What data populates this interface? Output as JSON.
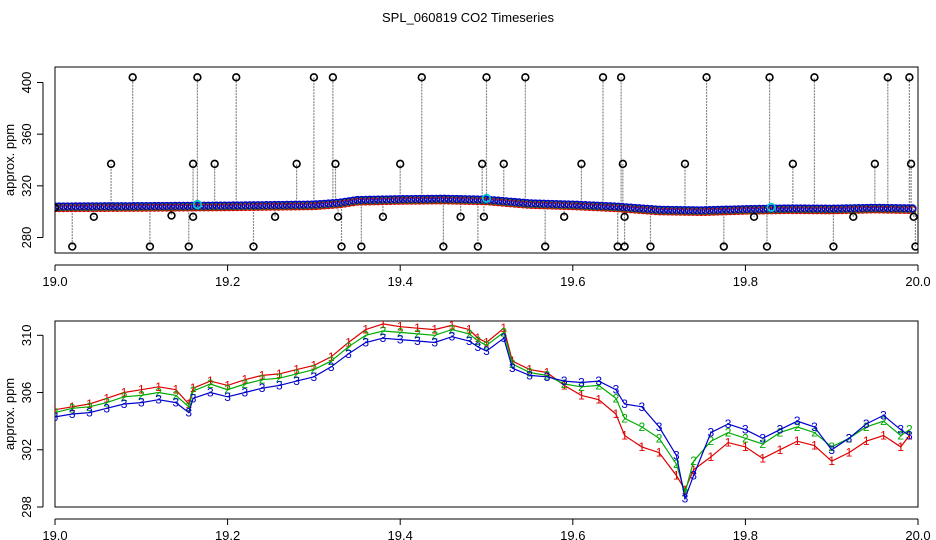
{
  "figure_title": "SPL_060819  CO2 Timeseries",
  "colors": {
    "series1": "#dd0000",
    "series2": "#00aa00",
    "series3": "#0000cc",
    "outlier": "#000000",
    "cyan": "#00cccc",
    "grey": "#888888"
  },
  "chart_data": [
    {
      "type": "scatter",
      "title": "",
      "xlabel": "",
      "ylabel": "approx. ppm",
      "xlim": [
        19.0,
        20.0
      ],
      "ylim": [
        268,
        412
      ],
      "xticks": [
        "19.0",
        "19.2",
        "19.4",
        "19.6",
        "19.8",
        "20.0"
      ],
      "yticks": [
        "280",
        "320",
        "360",
        "400"
      ],
      "grid": false,
      "baseline": [
        [
          19.0,
          303.5
        ],
        [
          19.1,
          303.8
        ],
        [
          19.2,
          304.2
        ],
        [
          19.3,
          305.0
        ],
        [
          19.33,
          306.5
        ],
        [
          19.35,
          308.5
        ],
        [
          19.4,
          309.2
        ],
        [
          19.45,
          309.5
        ],
        [
          19.5,
          308.8
        ],
        [
          19.55,
          306.0
        ],
        [
          19.6,
          305.0
        ],
        [
          19.65,
          303.5
        ],
        [
          19.7,
          301.0
        ],
        [
          19.75,
          300.5
        ],
        [
          19.8,
          301.5
        ],
        [
          19.85,
          302.0
        ],
        [
          19.9,
          301.8
        ],
        [
          19.95,
          302.5
        ],
        [
          20.0,
          302.0
        ]
      ],
      "outliers": [
        [
          19.0,
          303
        ],
        [
          19.02,
          273
        ],
        [
          19.045,
          296
        ],
        [
          19.065,
          337
        ],
        [
          19.09,
          404
        ],
        [
          19.11,
          273
        ],
        [
          19.135,
          297
        ],
        [
          19.155,
          273
        ],
        [
          19.16,
          296
        ],
        [
          19.16,
          337
        ],
        [
          19.165,
          404
        ],
        [
          19.185,
          337
        ],
        [
          19.21,
          404
        ],
        [
          19.23,
          273
        ],
        [
          19.255,
          296
        ],
        [
          19.28,
          337
        ],
        [
          19.3,
          404
        ],
        [
          19.322,
          404
        ],
        [
          19.325,
          337
        ],
        [
          19.328,
          296
        ],
        [
          19.332,
          273
        ],
        [
          19.355,
          273
        ],
        [
          19.38,
          296
        ],
        [
          19.4,
          337
        ],
        [
          19.425,
          404
        ],
        [
          19.45,
          273
        ],
        [
          19.47,
          296
        ],
        [
          19.49,
          273
        ],
        [
          19.495,
          337
        ],
        [
          19.497,
          296
        ],
        [
          19.5,
          404
        ],
        [
          19.52,
          337
        ],
        [
          19.545,
          404
        ],
        [
          19.568,
          273
        ],
        [
          19.59,
          296
        ],
        [
          19.61,
          337
        ],
        [
          19.635,
          404
        ],
        [
          19.652,
          273
        ],
        [
          19.656,
          404
        ],
        [
          19.658,
          337
        ],
        [
          19.66,
          296
        ],
        [
          19.66,
          273
        ],
        [
          19.69,
          273
        ],
        [
          19.73,
          337
        ],
        [
          19.755,
          404
        ],
        [
          19.775,
          273
        ],
        [
          19.81,
          296
        ],
        [
          19.825,
          273
        ],
        [
          19.828,
          404
        ],
        [
          19.855,
          337
        ],
        [
          19.88,
          404
        ],
        [
          19.902,
          273
        ],
        [
          19.925,
          296
        ],
        [
          19.95,
          337
        ],
        [
          19.965,
          404
        ],
        [
          19.99,
          404
        ],
        [
          19.992,
          337
        ],
        [
          19.995,
          296
        ],
        [
          19.997,
          273
        ]
      ]
    },
    {
      "type": "line",
      "title": "",
      "xlabel": "",
      "ylabel": "approx. ppm",
      "xlim": [
        19.0,
        20.0
      ],
      "ylim": [
        298,
        311
      ],
      "xticks": [
        "19.0",
        "19.2",
        "19.4",
        "19.6",
        "19.8",
        "20.0"
      ],
      "yticks": [
        "298",
        "302",
        "306",
        "310"
      ],
      "grid": false,
      "markers": [
        "1",
        "2",
        "3"
      ],
      "series": [
        {
          "marker": "1",
          "points": [
            [
              19.0,
              304.8
            ],
            [
              19.02,
              305.0
            ],
            [
              19.04,
              305.2
            ],
            [
              19.06,
              305.6
            ],
            [
              19.08,
              306.0
            ],
            [
              19.1,
              306.2
            ],
            [
              19.12,
              306.4
            ],
            [
              19.14,
              306.2
            ],
            [
              19.155,
              305.2
            ],
            [
              19.16,
              306.3
            ],
            [
              19.18,
              306.8
            ],
            [
              19.2,
              306.5
            ],
            [
              19.22,
              306.9
            ],
            [
              19.24,
              307.2
            ],
            [
              19.26,
              307.3
            ],
            [
              19.28,
              307.6
            ],
            [
              19.3,
              307.9
            ],
            [
              19.32,
              308.5
            ],
            [
              19.34,
              309.5
            ],
            [
              19.36,
              310.4
            ],
            [
              19.38,
              310.8
            ],
            [
              19.4,
              310.6
            ],
            [
              19.42,
              310.5
            ],
            [
              19.44,
              310.4
            ],
            [
              19.46,
              310.7
            ],
            [
              19.48,
              310.4
            ],
            [
              19.49,
              309.8
            ],
            [
              19.5,
              309.5
            ],
            [
              19.52,
              310.5
            ],
            [
              19.53,
              308.2
            ],
            [
              19.55,
              307.6
            ],
            [
              19.57,
              307.4
            ],
            [
              19.59,
              306.5
            ],
            [
              19.61,
              305.8
            ],
            [
              19.63,
              305.5
            ],
            [
              19.65,
              304.5
            ],
            [
              19.66,
              303.0
            ],
            [
              19.68,
              302.2
            ],
            [
              19.7,
              301.8
            ],
            [
              19.72,
              300.2
            ],
            [
              19.73,
              299.2
            ],
            [
              19.74,
              300.6
            ],
            [
              19.76,
              301.5
            ],
            [
              19.78,
              302.5
            ],
            [
              19.8,
              302.2
            ],
            [
              19.82,
              301.4
            ],
            [
              19.84,
              302.0
            ],
            [
              19.86,
              302.6
            ],
            [
              19.88,
              302.3
            ],
            [
              19.9,
              301.2
            ],
            [
              19.92,
              301.8
            ],
            [
              19.94,
              302.6
            ],
            [
              19.96,
              303.0
            ],
            [
              19.98,
              302.2
            ],
            [
              19.99,
              303.0
            ]
          ]
        },
        {
          "marker": "2",
          "points": [
            [
              19.0,
              304.6
            ],
            [
              19.02,
              304.9
            ],
            [
              19.04,
              305.0
            ],
            [
              19.06,
              305.3
            ],
            [
              19.08,
              305.7
            ],
            [
              19.1,
              305.8
            ],
            [
              19.12,
              306.0
            ],
            [
              19.14,
              305.8
            ],
            [
              19.155,
              305.0
            ],
            [
              19.16,
              306.1
            ],
            [
              19.18,
              306.6
            ],
            [
              19.2,
              306.2
            ],
            [
              19.22,
              306.6
            ],
            [
              19.24,
              306.9
            ],
            [
              19.26,
              307.0
            ],
            [
              19.28,
              307.3
            ],
            [
              19.3,
              307.6
            ],
            [
              19.32,
              308.2
            ],
            [
              19.34,
              309.2
            ],
            [
              19.36,
              310.0
            ],
            [
              19.38,
              310.3
            ],
            [
              19.4,
              310.2
            ],
            [
              19.42,
              310.1
            ],
            [
              19.44,
              310.0
            ],
            [
              19.46,
              310.4
            ],
            [
              19.48,
              310.1
            ],
            [
              19.49,
              309.6
            ],
            [
              19.5,
              309.3
            ],
            [
              19.52,
              310.2
            ],
            [
              19.53,
              308.0
            ],
            [
              19.55,
              307.4
            ],
            [
              19.57,
              307.2
            ],
            [
              19.59,
              306.6
            ],
            [
              19.61,
              306.4
            ],
            [
              19.63,
              306.5
            ],
            [
              19.65,
              305.6
            ],
            [
              19.66,
              304.2
            ],
            [
              19.68,
              303.6
            ],
            [
              19.7,
              302.8
            ],
            [
              19.72,
              301.0
            ],
            [
              19.73,
              299.0
            ],
            [
              19.74,
              301.2
            ],
            [
              19.76,
              302.6
            ],
            [
              19.78,
              303.2
            ],
            [
              19.8,
              302.8
            ],
            [
              19.82,
              302.4
            ],
            [
              19.84,
              303.2
            ],
            [
              19.86,
              303.6
            ],
            [
              19.88,
              303.2
            ],
            [
              19.9,
              302.2
            ],
            [
              19.92,
              302.8
            ],
            [
              19.94,
              303.6
            ],
            [
              19.96,
              304.0
            ],
            [
              19.98,
              303.0
            ],
            [
              19.99,
              303.4
            ]
          ]
        },
        {
          "marker": "3",
          "points": [
            [
              19.0,
              304.3
            ],
            [
              19.02,
              304.5
            ],
            [
              19.04,
              304.6
            ],
            [
              19.06,
              304.9
            ],
            [
              19.08,
              305.2
            ],
            [
              19.1,
              305.3
            ],
            [
              19.12,
              305.5
            ],
            [
              19.14,
              305.3
            ],
            [
              19.155,
              304.6
            ],
            [
              19.16,
              305.6
            ],
            [
              19.18,
              306.0
            ],
            [
              19.2,
              305.7
            ],
            [
              19.22,
              306.0
            ],
            [
              19.24,
              306.3
            ],
            [
              19.26,
              306.5
            ],
            [
              19.28,
              306.8
            ],
            [
              19.3,
              307.1
            ],
            [
              19.32,
              307.8
            ],
            [
              19.34,
              308.7
            ],
            [
              19.36,
              309.5
            ],
            [
              19.38,
              309.8
            ],
            [
              19.4,
              309.7
            ],
            [
              19.42,
              309.6
            ],
            [
              19.44,
              309.5
            ],
            [
              19.46,
              309.9
            ],
            [
              19.48,
              309.6
            ],
            [
              19.49,
              309.2
            ],
            [
              19.5,
              308.9
            ],
            [
              19.52,
              309.8
            ],
            [
              19.53,
              307.7
            ],
            [
              19.55,
              307.2
            ],
            [
              19.57,
              307.1
            ],
            [
              19.59,
              306.8
            ],
            [
              19.61,
              306.7
            ],
            [
              19.63,
              306.8
            ],
            [
              19.65,
              306.2
            ],
            [
              19.66,
              305.2
            ],
            [
              19.68,
              305.0
            ],
            [
              19.7,
              303.6
            ],
            [
              19.72,
              301.6
            ],
            [
              19.73,
              298.6
            ],
            [
              19.74,
              300.2
            ],
            [
              19.76,
              303.2
            ],
            [
              19.78,
              303.8
            ],
            [
              19.8,
              303.4
            ],
            [
              19.82,
              302.8
            ],
            [
              19.84,
              303.4
            ],
            [
              19.86,
              304.0
            ],
            [
              19.88,
              303.6
            ],
            [
              19.9,
              302.0
            ],
            [
              19.92,
              302.8
            ],
            [
              19.94,
              303.8
            ],
            [
              19.96,
              304.4
            ],
            [
              19.98,
              303.4
            ],
            [
              19.99,
              303.0
            ]
          ]
        }
      ]
    }
  ]
}
